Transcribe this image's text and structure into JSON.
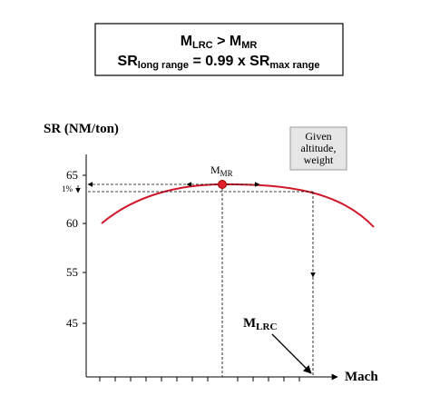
{
  "header": {
    "line1": [
      "M",
      "LRC",
      " > M",
      "MR"
    ],
    "line2": [
      "SR",
      "long range",
      " = 0.99 x SR",
      "max range"
    ]
  },
  "y_axis_label": "SR (NM/ton)",
  "y_tick_labels": [
    "65",
    "60",
    "55",
    "45"
  ],
  "gap_label": "1%",
  "note": [
    "Given",
    "altitude,",
    "weight"
  ],
  "mmr_label": [
    "M",
    "MR"
  ],
  "mlrc_label": [
    "M",
    "LRC"
  ],
  "x_axis_label": "Mach"
}
